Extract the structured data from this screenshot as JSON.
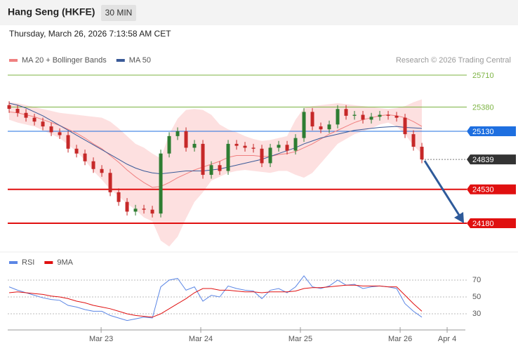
{
  "header": {
    "title": "Hang Seng (HKFE)",
    "interval": "30 MIN",
    "timestamp": "Thursday, March 26, 2026 7:13:58 AM CET",
    "credit": "Research © 2026 Trading Central"
  },
  "chart_data": [
    {
      "type": "candlestick",
      "x": [
        0,
        1,
        2,
        3,
        4,
        5,
        6,
        7,
        8,
        9,
        10,
        11,
        12,
        13,
        14,
        15,
        16,
        17,
        18,
        19,
        20,
        21,
        22,
        23,
        24,
        25,
        26,
        27,
        28,
        29,
        30,
        31,
        32,
        33,
        34,
        35,
        36,
        37,
        38,
        39,
        40,
        41,
        42,
        43,
        44,
        45,
        46,
        47,
        48,
        49
      ],
      "open": [
        25400,
        25362,
        25320,
        25270,
        25230,
        25180,
        25120,
        25090,
        24950,
        24900,
        24820,
        24740,
        24700,
        24500,
        24400,
        24300,
        24330,
        24320,
        24280,
        24900,
        25080,
        25130,
        24960,
        25000,
        24680,
        24780,
        24720,
        25000,
        24980,
        24960,
        24950,
        24800,
        24960,
        24990,
        24930,
        25060,
        25330,
        25180,
        25150,
        25200,
        25360,
        25290,
        25300,
        25250,
        25280,
        25300,
        25290,
        25270,
        25100,
        24970
      ],
      "high": [
        25440,
        25400,
        25360,
        25310,
        25270,
        25220,
        25160,
        25130,
        24990,
        24940,
        24860,
        24780,
        24740,
        24540,
        24440,
        24370,
        24370,
        24360,
        24940,
        25120,
        25170,
        25170,
        25040,
        25040,
        24820,
        24820,
        25040,
        25040,
        25020,
        25000,
        24990,
        25000,
        25030,
        25030,
        25100,
        25370,
        25370,
        25220,
        25240,
        25400,
        25400,
        25340,
        25340,
        25320,
        25340,
        25340,
        25330,
        25310,
        25140,
        25010
      ],
      "low": [
        25320,
        25280,
        25230,
        25190,
        25140,
        25080,
        25050,
        24910,
        24860,
        24780,
        24700,
        24660,
        24460,
        24360,
        24260,
        24260,
        24280,
        24240,
        24240,
        24860,
        25040,
        24920,
        24920,
        24640,
        24640,
        24680,
        24680,
        24940,
        24920,
        24910,
        24760,
        24760,
        24920,
        24890,
        24890,
        25020,
        25140,
        25110,
        25110,
        25160,
        25250,
        25250,
        25210,
        25210,
        25240,
        25250,
        25230,
        25060,
        24930,
        24800
      ],
      "close": [
        25362,
        25320,
        25270,
        25230,
        25180,
        25120,
        25090,
        24950,
        24900,
        24820,
        24740,
        24700,
        24500,
        24400,
        24300,
        24330,
        24320,
        24280,
        24900,
        25080,
        25130,
        24960,
        25000,
        24680,
        24780,
        24720,
        25000,
        24980,
        24960,
        24950,
        24800,
        24960,
        24990,
        24930,
        25060,
        25330,
        25180,
        25150,
        25200,
        25360,
        25290,
        25300,
        25250,
        25280,
        25300,
        25290,
        25270,
        25100,
        24970,
        24839
      ],
      "up_color": "#2e7d32",
      "down_color": "#c62828",
      "series": [
        {
          "name": "MA 20 + Bollinger Bands",
          "color": "#f08080",
          "values": [
            25330,
            25320,
            25300,
            25280,
            25250,
            25220,
            25190,
            25150,
            25110,
            25060,
            25000,
            24950,
            24880,
            24810,
            24730,
            24660,
            24600,
            24550,
            24560,
            24600,
            24650,
            24690,
            24730,
            24760,
            24790,
            24820,
            24860,
            24880,
            24880,
            24880,
            24870,
            24870,
            24890,
            24900,
            24920,
            24960,
            25000,
            25050,
            25100,
            25140,
            25180,
            25220,
            25250,
            25270,
            25290,
            25300,
            25290,
            25270,
            25230,
            25180
          ],
          "upper": [
            25430,
            25420,
            25400,
            25380,
            25360,
            25340,
            25320,
            25310,
            25300,
            25290,
            25280,
            25270,
            25230,
            25160,
            25080,
            25000,
            24960,
            24900,
            24850,
            25100,
            25260,
            25350,
            25360,
            25350,
            25300,
            25200,
            25150,
            25120,
            25080,
            25050,
            25030,
            25040,
            25060,
            25080,
            25250,
            25370,
            25390,
            25400,
            25410,
            25420,
            25410,
            25400,
            25390,
            25380,
            25370,
            25360,
            25370,
            25390,
            25430,
            25460
          ],
          "lower": [
            25250,
            25220,
            25200,
            25180,
            25140,
            25100,
            25060,
            24990,
            24920,
            24830,
            24720,
            24630,
            24530,
            24460,
            24380,
            24320,
            24240,
            24200,
            24000,
            23940,
            24040,
            24230,
            24400,
            24500,
            24620,
            24660,
            24700,
            24720,
            24730,
            24720,
            24710,
            24700,
            24720,
            24720,
            24680,
            24650,
            24700,
            24800,
            24900,
            25000,
            25050,
            25100,
            25130,
            25160,
            25200,
            25220,
            25180,
            25100,
            24980,
            24900
          ],
          "band_color": "#fde0e0"
        },
        {
          "name": "MA 50",
          "color": "#3a5a98",
          "values": [
            25420,
            25400,
            25370,
            25330,
            25290,
            25240,
            25190,
            25140,
            25090,
            25040,
            24990,
            24940,
            24890,
            24840,
            24790,
            24750,
            24720,
            24700,
            24690,
            24700,
            24710,
            24720,
            24720,
            24720,
            24730,
            24740,
            24760,
            24780,
            24800,
            24820,
            24840,
            24870,
            24900,
            24930,
            24960,
            25000,
            25030,
            25060,
            25080,
            25100,
            25120,
            25140,
            25150,
            25160,
            25170,
            25175,
            25180,
            25170,
            25165,
            25160
          ]
        }
      ],
      "levels": [
        {
          "value": 25710,
          "color": "#7cb342",
          "label_fill": false
        },
        {
          "value": 25380,
          "color": "#7cb342",
          "label_fill": false
        },
        {
          "value": 25130,
          "color": "#1e6fe0",
          "label_fill": true
        },
        {
          "value": 24839,
          "color": "#333333",
          "label_fill": true,
          "dotted": true
        },
        {
          "value": 24530,
          "color": "#e01010",
          "label_fill": true
        },
        {
          "value": 24180,
          "color": "#e01010",
          "label_fill": true
        }
      ],
      "xlim": [
        -0.17,
        54.33
      ],
      "ylim": [
        23900,
        25800
      ]
    },
    {
      "type": "line",
      "x": [
        0,
        1,
        2,
        3,
        4,
        5,
        6,
        7,
        8,
        9,
        10,
        11,
        12,
        13,
        14,
        15,
        16,
        17,
        18,
        19,
        20,
        21,
        22,
        23,
        24,
        25,
        26,
        27,
        28,
        29,
        30,
        31,
        32,
        33,
        34,
        35,
        36,
        37,
        38,
        39,
        40,
        41,
        42,
        43,
        44,
        45,
        46,
        47,
        48,
        49
      ],
      "series": [
        {
          "name": "RSI",
          "color": "#5b86e5",
          "values": [
            62,
            58,
            55,
            52,
            49,
            47,
            46,
            40,
            38,
            35,
            33,
            33,
            28,
            25,
            22,
            24,
            26,
            25,
            62,
            70,
            72,
            58,
            62,
            45,
            52,
            50,
            63,
            60,
            58,
            57,
            48,
            58,
            60,
            55,
            62,
            75,
            62,
            60,
            63,
            70,
            64,
            65,
            60,
            62,
            63,
            62,
            60,
            42,
            33,
            26
          ]
        },
        {
          "name": "9MA",
          "color": "#e01010",
          "values": [
            55,
            56,
            55,
            54,
            53,
            51,
            50,
            48,
            45,
            43,
            40,
            38,
            36,
            33,
            30,
            28,
            27,
            26,
            30,
            36,
            42,
            48,
            55,
            60,
            60,
            58,
            58,
            57,
            56,
            56,
            55,
            56,
            56,
            56,
            57,
            60,
            61,
            61,
            62,
            63,
            64,
            64,
            63,
            63,
            63,
            62,
            62,
            52,
            42,
            33
          ]
        }
      ],
      "xlim": [
        -0.17,
        54.33
      ],
      "ylim": [
        14,
        86
      ],
      "yticks": [
        30,
        50,
        70
      ],
      "xticks": [
        {
          "value": 10.92,
          "label": "Mar 23"
        },
        {
          "value": 22.75,
          "label": "Mar 24"
        },
        {
          "value": 34.58,
          "label": "Mar 25"
        },
        {
          "value": 46.42,
          "label": "Mar 26"
        },
        {
          "value": 52,
          "label": "Apr 4"
        }
      ],
      "grid": true
    }
  ]
}
